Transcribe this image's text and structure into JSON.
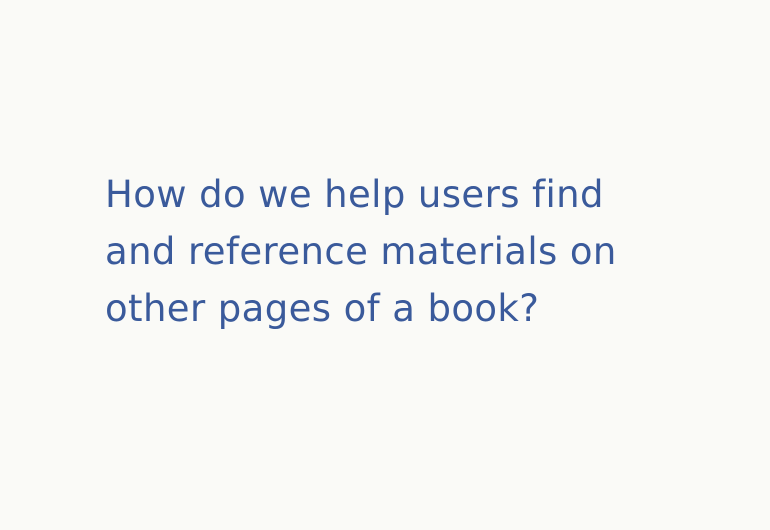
{
  "slide": {
    "question_lines": [
      "How do we help users find",
      "and reference materials on",
      "other pages of a book?"
    ]
  },
  "colors": {
    "background": "#fafaf7",
    "text": "#3a5a9b"
  }
}
